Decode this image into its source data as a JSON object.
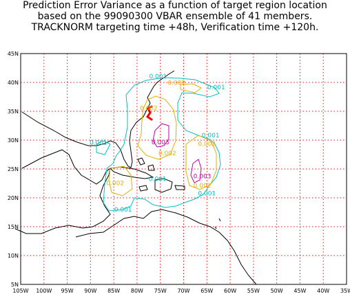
{
  "title": {
    "line1": "Prediction Error Variance as a function of target region location",
    "line2": "based on the 99090300 VBAR ensemble of 41 members.",
    "line3": "TRACKNORM targeting time +48h, Verification time +120h."
  },
  "axes": {
    "lon_ticks": [
      "105W",
      "100W",
      "95W",
      "90W",
      "85W",
      "80W",
      "75W",
      "70W",
      "65W",
      "60W",
      "55W",
      "50W",
      "45W",
      "40W",
      "35W"
    ],
    "lat_ticks": [
      "45N",
      "40N",
      "35N",
      "30N",
      "25N",
      "20N",
      "15N",
      "10N",
      "5N"
    ],
    "lon_range": [
      -105,
      -35
    ],
    "lat_range": [
      5,
      45
    ]
  },
  "contour_labels": [
    {
      "text": "0.001",
      "lon": -75.5,
      "lat": 40.7,
      "color": "#00c0c0"
    },
    {
      "text": "0.002",
      "lon": -71.5,
      "lat": 39.6,
      "color": "#e0b000"
    },
    {
      "text": "0.001",
      "lon": -63.0,
      "lat": 38.8,
      "color": "#00c0c0"
    },
    {
      "text": "0.002",
      "lon": -77.5,
      "lat": 35.2,
      "color": "#e0b000"
    },
    {
      "text": "0.003",
      "lon": -75.0,
      "lat": 29.3,
      "color": "#c000a0"
    },
    {
      "text": "0.002",
      "lon": -73.5,
      "lat": 27.4,
      "color": "#e0b000"
    },
    {
      "text": "0.001",
      "lon": -64.2,
      "lat": 30.5,
      "color": "#00c0c0"
    },
    {
      "text": "0.002",
      "lon": -65.0,
      "lat": 29.0,
      "color": "#e0b000"
    },
    {
      "text": "0.001",
      "lon": -88.3,
      "lat": 29.2,
      "color": "#00c0c0"
    },
    {
      "text": "0.003",
      "lon": -66.0,
      "lat": 23.4,
      "color": "#c000a0"
    },
    {
      "text": "0.002",
      "lon": -66.0,
      "lat": 21.8,
      "color": "#e0b000"
    },
    {
      "text": "0.001",
      "lon": -65.0,
      "lat": 20.4,
      "color": "#00c0c0"
    },
    {
      "text": "0.001",
      "lon": -75.6,
      "lat": 22.9,
      "color": "#00c0c0"
    },
    {
      "text": "0.002",
      "lon": -84.7,
      "lat": 22.2,
      "color": "#e0b000"
    },
    {
      "text": "0.001",
      "lon": -83.0,
      "lat": 17.6,
      "color": "#00c0c0"
    }
  ],
  "colors": {
    "grid": "#ff0000",
    "coast": "#000000",
    "contour_001": "#00c0c0",
    "contour_002": "#e0b000",
    "contour_003": "#c000a0",
    "track": "#ff0000"
  }
}
